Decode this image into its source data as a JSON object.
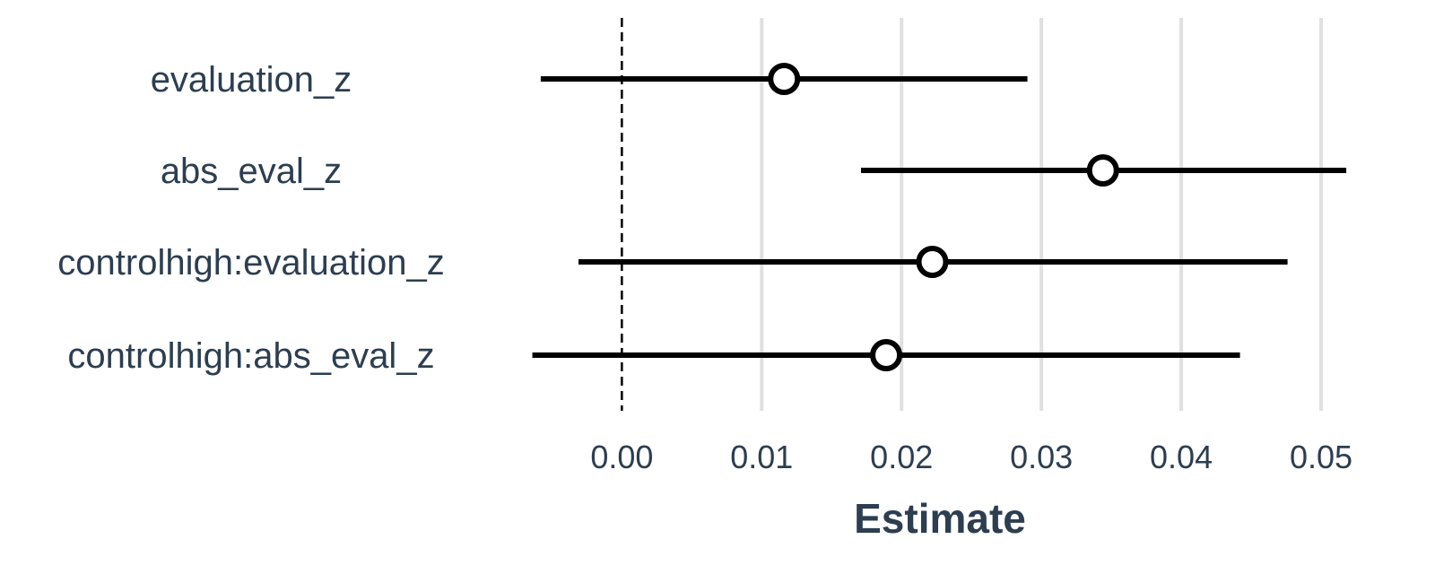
{
  "chart_data": {
    "type": "scatter",
    "subtype": "coefficient-plot",
    "title": "",
    "xlabel": "Estimate",
    "ylabel": "",
    "xlim": [
      -0.0065,
      0.0525
    ],
    "xticks": [
      0.0,
      0.01,
      0.02,
      0.03,
      0.04,
      0.05
    ],
    "xtick_labels": [
      "0.00",
      "0.01",
      "0.02",
      "0.03",
      "0.04",
      "0.05"
    ],
    "reference_line": 0,
    "grid": "vertical",
    "terms": [
      {
        "label": "evaluation_z",
        "estimate": 0.0116,
        "lower": -0.0058,
        "upper": 0.029
      },
      {
        "label": "abs_eval_z",
        "estimate": 0.0344,
        "lower": 0.0171,
        "upper": 0.0518
      },
      {
        "label": "controlhigh:evaluation_z",
        "estimate": 0.0222,
        "lower": -0.0031,
        "upper": 0.0476
      },
      {
        "label": "controlhigh:abs_eval_z",
        "estimate": 0.0189,
        "lower": -0.0064,
        "upper": 0.0442
      }
    ],
    "colors": {
      "text": "#2c3e50",
      "grid": "#e0e0e0",
      "line": "#000000",
      "point_fill": "#ffffff"
    }
  }
}
